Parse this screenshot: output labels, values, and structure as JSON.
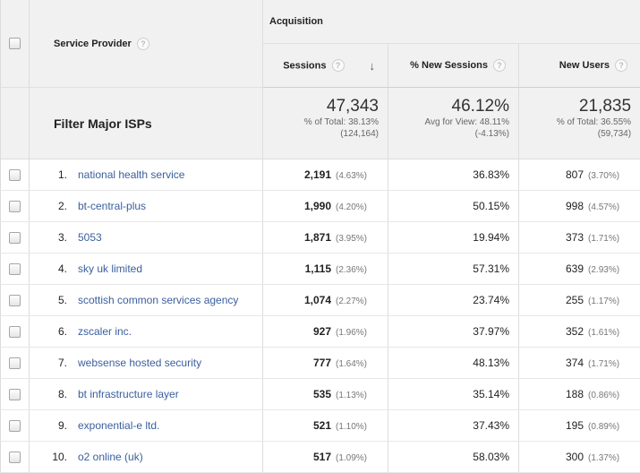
{
  "header": {
    "service_provider": "Service Provider",
    "group": "Acquisition",
    "sessions": "Sessions",
    "new_sessions": "% New Sessions",
    "new_users": "New Users",
    "help_glyph": "?",
    "sort_arrow": "↓"
  },
  "totals": {
    "label": "Filter Major ISPs",
    "sessions": {
      "value": "47,343",
      "line1": "% of Total: 38.13%",
      "line2": "(124,164)"
    },
    "new_sessions": {
      "value": "46.12%",
      "line1": "Avg for View: 48.11%",
      "line2": "(-4.13%)"
    },
    "new_users": {
      "value": "21,835",
      "line1": "% of Total: 36.55%",
      "line2": "(59,734)"
    }
  },
  "rows": [
    {
      "index": "1.",
      "name": "national health service",
      "sessions": "2,191",
      "sessions_pct": "(4.63%)",
      "new_sessions": "36.83%",
      "new_users": "807",
      "new_users_pct": "(3.70%)"
    },
    {
      "index": "2.",
      "name": "bt-central-plus",
      "sessions": "1,990",
      "sessions_pct": "(4.20%)",
      "new_sessions": "50.15%",
      "new_users": "998",
      "new_users_pct": "(4.57%)"
    },
    {
      "index": "3.",
      "name": "5053",
      "sessions": "1,871",
      "sessions_pct": "(3.95%)",
      "new_sessions": "19.94%",
      "new_users": "373",
      "new_users_pct": "(1.71%)"
    },
    {
      "index": "4.",
      "name": "sky uk limited",
      "sessions": "1,115",
      "sessions_pct": "(2.36%)",
      "new_sessions": "57.31%",
      "new_users": "639",
      "new_users_pct": "(2.93%)"
    },
    {
      "index": "5.",
      "name": "scottish common services agency",
      "sessions": "1,074",
      "sessions_pct": "(2.27%)",
      "new_sessions": "23.74%",
      "new_users": "255",
      "new_users_pct": "(1.17%)"
    },
    {
      "index": "6.",
      "name": "zscaler inc.",
      "sessions": "927",
      "sessions_pct": "(1.96%)",
      "new_sessions": "37.97%",
      "new_users": "352",
      "new_users_pct": "(1.61%)"
    },
    {
      "index": "7.",
      "name": "websense hosted security",
      "sessions": "777",
      "sessions_pct": "(1.64%)",
      "new_sessions": "48.13%",
      "new_users": "374",
      "new_users_pct": "(1.71%)"
    },
    {
      "index": "8.",
      "name": "bt infrastructure layer",
      "sessions": "535",
      "sessions_pct": "(1.13%)",
      "new_sessions": "35.14%",
      "new_users": "188",
      "new_users_pct": "(0.86%)"
    },
    {
      "index": "9.",
      "name": "exponential-e ltd.",
      "sessions": "521",
      "sessions_pct": "(1.10%)",
      "new_sessions": "37.43%",
      "new_users": "195",
      "new_users_pct": "(0.89%)"
    },
    {
      "index": "10.",
      "name": "o2 online (uk)",
      "sessions": "517",
      "sessions_pct": "(1.09%)",
      "new_sessions": "58.03%",
      "new_users": "300",
      "new_users_pct": "(1.37%)"
    }
  ]
}
